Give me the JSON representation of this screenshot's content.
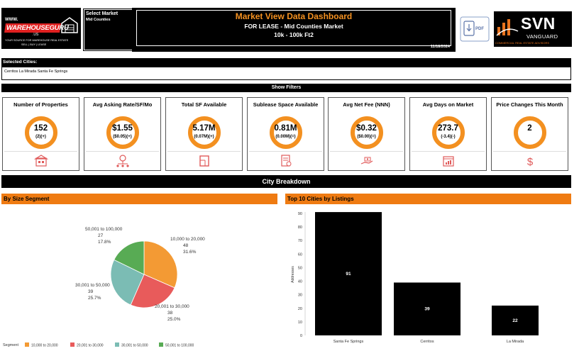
{
  "header": {
    "logo_name": "WAREHOUSEGURU",
    "logo_www": "WWW.",
    "logo_us": ".US",
    "logo_tagline": "YOUR SOURCE FOR WAREHOUSE REAL ESTATE",
    "logo_tagline2": "SELL | BUY | LEASE",
    "select_market_label": "Select Market",
    "select_market_value": "Mid Counties",
    "title": "Market View Data Dashboard",
    "subtitle1": "FOR LEASE - Mid Counties Market",
    "subtitle2": "10k - 100k Ft2",
    "date": "11/18/2024",
    "pdf_label": "PDF",
    "brand": "SVN",
    "brand_sub": "VANGUARD",
    "brand_tag": "COMMERCIAL REAL ESTATE ADVISORS"
  },
  "selected_cities": {
    "label": "Selected Cities:",
    "value": "Cerritos  La Mirada  Santa Fe Springs"
  },
  "filters_label": "Show Filters",
  "kpis": [
    {
      "title": "Number of Properties",
      "value": "152",
      "sub": "(2)(+)",
      "icon": "building-icon"
    },
    {
      "title": "Avg Asking Rate/SF/Mo",
      "value": "$1.55",
      "sub": "($0.05)(+)",
      "icon": "network-money-icon"
    },
    {
      "title": "Total SF Available",
      "value": "5.17M",
      "sub": "(0.07M)(+)",
      "icon": "floorplan-icon"
    },
    {
      "title": "Sublease Space Available",
      "value": "0.81M",
      "sub": "(0.00M)(=)",
      "icon": "sublease-document-icon"
    },
    {
      "title": "Avg Net Fee (NNN)",
      "value": "$0.32",
      "sub": "($0.00)(=)",
      "icon": "hand-money-icon"
    },
    {
      "title": "Avg Days on Market",
      "value": "273.7",
      "sub": "(-3.4)(-)",
      "icon": "calendar-chart-icon"
    },
    {
      "title": "Price Changes This Month",
      "value": "2",
      "sub": "",
      "icon": "dollar-icon"
    }
  ],
  "city_breakdown_label": "City Breakdown",
  "size_segment": {
    "title": "By Size Segment",
    "legend_label": "Segment"
  },
  "top_cities": {
    "title": "Top 10 Cities by Listings"
  },
  "colors": {
    "orange": "#f39020",
    "accent_red": "#e05a5a",
    "svn_orange": "#e8731e"
  },
  "chart_data": [
    {
      "type": "pie",
      "title": "By Size Segment",
      "categories": [
        "10,000 to 20,000",
        "20,001 to 30,000",
        "30,001 to 50,000",
        "50,001 to 100,000"
      ],
      "values": [
        48,
        38,
        39,
        27
      ],
      "percents": [
        "31.6%",
        "25.0%",
        "25.7%",
        "17.8%"
      ],
      "colors": [
        "#f39a34",
        "#e85b5b",
        "#7bbcb4",
        "#58ab54"
      ],
      "legend_title": "Segment",
      "legend_position": "bottom"
    },
    {
      "type": "bar",
      "title": "Top 10 Cities by Listings",
      "categories": [
        "Santa Fe Springs",
        "Cerritos",
        "La Mirada"
      ],
      "values": [
        91,
        39,
        22
      ],
      "ylabel": "Addresses",
      "xlabel": "",
      "ylim": [
        0,
        90
      ],
      "yticks": [
        0,
        10,
        20,
        30,
        40,
        50,
        60,
        70,
        80,
        90
      ],
      "bar_color": "#000000",
      "grid": false
    }
  ]
}
